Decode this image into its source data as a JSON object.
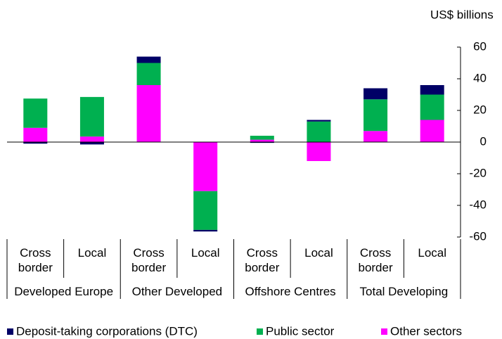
{
  "chart_data": {
    "type": "stacked_bar",
    "y_axis_label": "US$ billions",
    "groups": [
      "Developed Europe",
      "Other Developed",
      "Offshore Centres",
      "Total Developing"
    ],
    "categories": [
      "Cross border",
      "Local",
      "Cross border",
      "Local",
      "Cross border",
      "Local",
      "Cross border",
      "Local"
    ],
    "series": [
      {
        "name": "Other sectors",
        "color": "#ff00ff",
        "values": [
          9,
          3.5,
          36,
          -31,
          1.5,
          -12,
          7,
          14
        ]
      },
      {
        "name": "Public sector",
        "color": "#00b050",
        "values": [
          18.5,
          25,
          14,
          -24.5,
          2.5,
          13,
          20,
          16
        ]
      },
      {
        "name": "Deposit-taking corporations (DTC)",
        "color": "#000066",
        "values": [
          -1,
          -1.5,
          4,
          -1,
          -0.5,
          1,
          7,
          6
        ]
      }
    ],
    "legend_order": [
      2,
      1,
      0
    ],
    "ylim": [
      -60,
      60
    ],
    "yticks": [
      -60,
      -40,
      -20,
      0,
      20,
      40,
      60
    ]
  }
}
